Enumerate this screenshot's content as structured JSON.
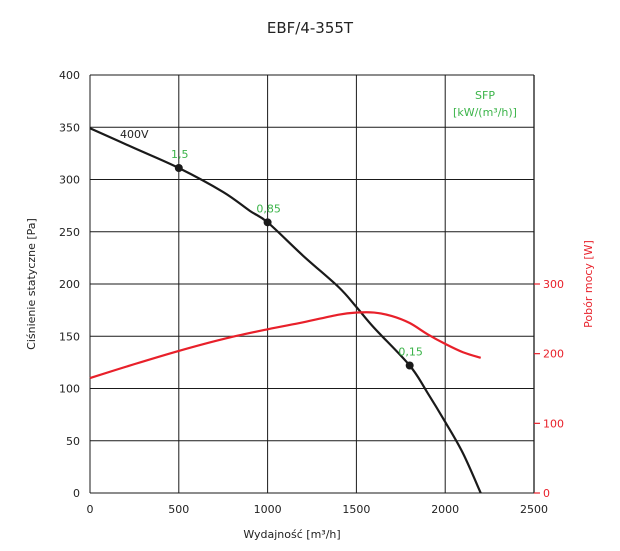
{
  "chart_data": {
    "type": "line",
    "title": "EBF/4-355T",
    "xlabel": "Wydajność [m³/h]",
    "ylabel": "Ciśnienie statyczne [Pa]",
    "y2label": "Pobór mocy [W]",
    "xlim": [
      0,
      2500
    ],
    "ylim": [
      0,
      400
    ],
    "y2lim": [
      0,
      300
    ],
    "x_ticks": [
      0,
      500,
      1000,
      1500,
      2000,
      2500
    ],
    "y_ticks": [
      0,
      50,
      100,
      150,
      200,
      250,
      300,
      350,
      400
    ],
    "y2_ticks": [
      0,
      100,
      200,
      300
    ],
    "grid": true,
    "series": [
      {
        "name": "400V",
        "axis": "left",
        "color": "#1a1a1a",
        "x": [
          0,
          250,
          500,
          750,
          900,
          1000,
          1200,
          1400,
          1500,
          1600,
          1800,
          1900,
          2000,
          2100,
          2200
        ],
        "y": [
          349,
          330,
          311,
          288,
          270,
          259,
          227,
          197,
          178,
          158,
          122,
          96,
          68,
          38,
          0
        ]
      },
      {
        "name": "Pobór mocy",
        "axis": "right",
        "color": "#e8202a",
        "x": [
          0,
          250,
          500,
          750,
          1000,
          1200,
          1400,
          1500,
          1600,
          1700,
          1800,
          1900,
          2000,
          2100,
          2200
        ],
        "y": [
          165,
          185,
          204,
          221,
          235,
          245,
          256,
          259,
          259,
          254,
          244,
          228,
          214,
          202,
          194
        ]
      }
    ],
    "markers": [
      {
        "x": 500,
        "y": 311,
        "label": "1,5"
      },
      {
        "x": 1000,
        "y": 259,
        "label": "0,85"
      },
      {
        "x": 1800,
        "y": 122,
        "label": "0,15"
      }
    ],
    "annotations": {
      "curve_label": "400V",
      "sfp_title": "SFP",
      "sfp_unit": "[kW/(m³/h)]"
    },
    "colors": {
      "sfp": "#3cb44a",
      "power": "#e8202a",
      "grid": "#1a1a1a"
    }
  }
}
